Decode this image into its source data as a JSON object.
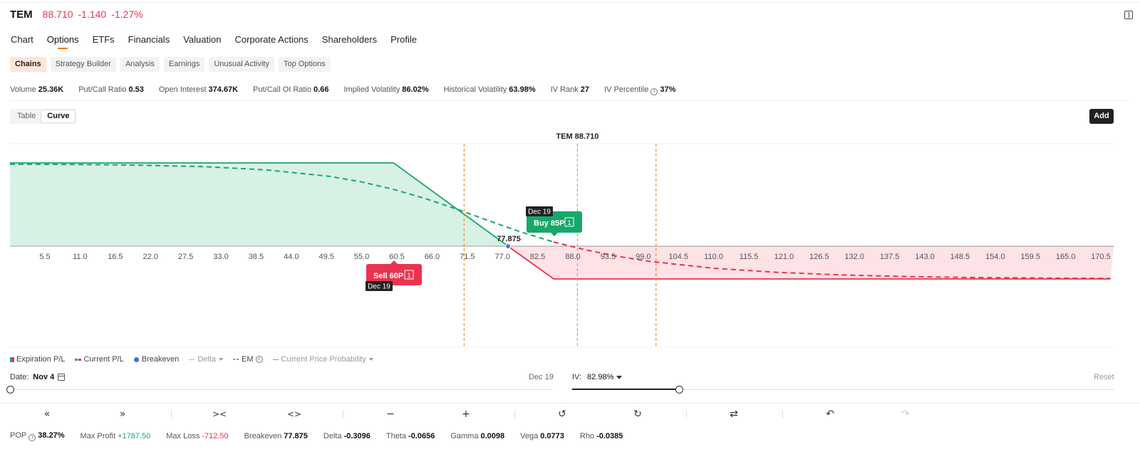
{
  "header": {
    "symbol": "TEM",
    "price": "88.710",
    "change": "-1.140",
    "change_pct": "-1.27%"
  },
  "main_tabs": [
    "Chart",
    "Options",
    "ETFs",
    "Financials",
    "Valuation",
    "Corporate Actions",
    "Shareholders",
    "Profile"
  ],
  "main_tabs_active": "Options",
  "sub_tabs": [
    "Chains",
    "Strategy Builder",
    "Analysis",
    "Earnings",
    "Unusual Activity",
    "Top Options"
  ],
  "sub_tabs_active": "Chains",
  "stats": {
    "volume_label": "Volume",
    "volume": "25.36K",
    "pcr_label": "Put/Call Ratio",
    "pcr": "0.53",
    "oi_label": "Open Interest",
    "oi": "374.67K",
    "pcoi_label": "Put/Call OI Ratio",
    "pcoi": "0.66",
    "iv_label": "Implied Volatility",
    "iv": "86.02%",
    "hv_label": "Historical Volatility",
    "hv": "63.98%",
    "ivr_label": "IV Rank",
    "ivr": "27",
    "ivp_label": "IV Percentile",
    "ivp": "37%"
  },
  "view_toggle": {
    "table": "Table",
    "curve": "Curve",
    "active": "Curve"
  },
  "add_button": "Add",
  "chart_data": {
    "type": "line",
    "title": "TEM 88.710",
    "current_price": 88.71,
    "breakeven": 77.875,
    "breakeven_label": "77.875",
    "em_lines": [
      71.0,
      101.0
    ],
    "x_ticks": [
      "5.5",
      "11.0",
      "16.5",
      "22.0",
      "27.5",
      "33.0",
      "38.5",
      "44.0",
      "49.5",
      "55.0",
      "60.5",
      "66.0",
      "71.5",
      "77.0",
      "82.5",
      "88.0",
      "93.5",
      "99.0",
      "104.5",
      "110.0",
      "115.5",
      "121.0",
      "126.5",
      "132.0",
      "137.5",
      "143.0",
      "148.5",
      "154.0",
      "159.5",
      "165.0",
      "170.5"
    ],
    "xlim": [
      0,
      172
    ],
    "ylim": [
      -1600,
      1950
    ],
    "series": [
      {
        "name": "Expiration P/L",
        "x": [
          0,
          60,
          85,
          172
        ],
        "y": [
          1787.5,
          1787.5,
          -712.5,
          -712.5
        ]
      },
      {
        "name": "Current P/L",
        "x": [
          0,
          10,
          20,
          30,
          40,
          50,
          55,
          60,
          65,
          70,
          75,
          80,
          85,
          90,
          95,
          100,
          110,
          120,
          130,
          140,
          150,
          160,
          172
        ],
        "y": [
          1760,
          1755,
          1740,
          1710,
          1640,
          1500,
          1380,
          1220,
          1020,
          790,
          540,
          300,
          90,
          -80,
          -220,
          -330,
          -480,
          -570,
          -625,
          -660,
          -680,
          -692,
          -700
        ]
      }
    ],
    "legs": [
      {
        "label": "Buy 85P",
        "qty": "1",
        "expiry": "Dec 19",
        "strike": 85,
        "color": "#17a86b"
      },
      {
        "label": "Sell 60P",
        "qty": "1",
        "expiry": "Dec 19",
        "strike": 60,
        "color": "#e8344e"
      }
    ]
  },
  "legend": {
    "expiration": "Expiration P/L",
    "current": "Current P/L",
    "breakeven": "Breakeven",
    "delta": "Delta",
    "em": "EM",
    "probability": "Current Price Probability"
  },
  "date_slider": {
    "label": "Date:",
    "value": "Nov 4",
    "end": "Dec 19",
    "position": 0.0
  },
  "iv_slider": {
    "label": "IV:",
    "value": "82.98%",
    "reset": "Reset",
    "position": 0.2
  },
  "toolbar_icons": [
    "double-left-icon",
    "double-right-icon",
    "collapse-icon",
    "expand-icon",
    "minus-icon",
    "plus-icon",
    "history-back-icon",
    "history-forward-icon",
    "swap-icon",
    "undo-icon",
    "redo-icon"
  ],
  "greeks": {
    "pop_label": "POP",
    "pop": "38.27%",
    "max_profit_label": "Max Profit",
    "max_profit": "+1787.50",
    "max_loss_label": "Max Loss",
    "max_loss": "-712.50",
    "breakeven_label": "Breakeven",
    "breakeven": "77.875",
    "delta_label": "Delta",
    "delta": "-0.3096",
    "theta_label": "Theta",
    "theta": "-0.0656",
    "gamma_label": "Gamma",
    "gamma": "0.0098",
    "vega_label": "Vega",
    "vega": "0.0773",
    "rho_label": "Rho",
    "rho": "-0.0385"
  }
}
